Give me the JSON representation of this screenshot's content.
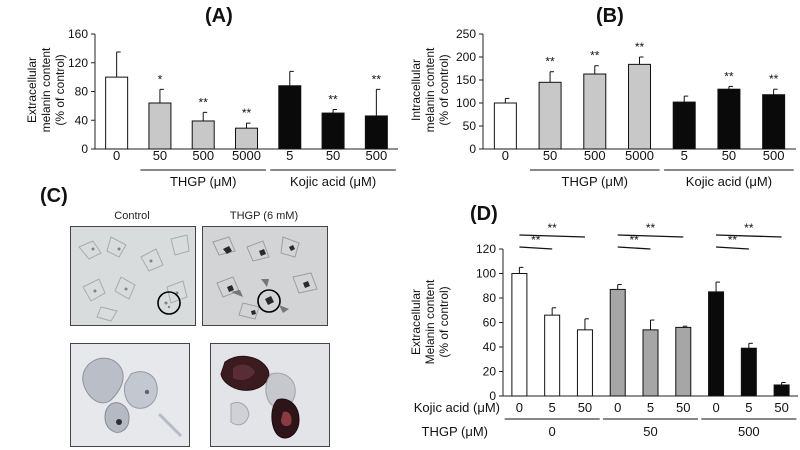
{
  "panels": {
    "A": "(A)",
    "B": "(B)",
    "C": "(C)",
    "D": "(D)"
  },
  "micrograph": {
    "control_label": "Control",
    "treated_label": "THGP (6 mM)"
  },
  "colors": {
    "white": "#ffffff",
    "gray": "#c8c8c8",
    "black": "#0a0a0a",
    "gray_d": "#a6a6a6"
  },
  "chart_data": [
    {
      "id": "A",
      "type": "bar",
      "ylabel": [
        "Extracellular",
        "melanin content",
        "(% of control)"
      ],
      "ylim": [
        0,
        160
      ],
      "yticks": [
        0,
        40,
        80,
        120,
        160
      ],
      "categories": [
        "0",
        "50",
        "500",
        "5000",
        "5",
        "50",
        "500"
      ],
      "values": [
        100,
        64,
        39,
        29,
        88,
        50,
        46
      ],
      "errors": [
        35,
        19,
        12,
        7,
        20,
        5,
        37
      ],
      "fills": [
        "white",
        "gray",
        "gray",
        "gray",
        "black",
        "black",
        "black"
      ],
      "annotations": [
        "",
        "*",
        "**",
        "**",
        "",
        "**",
        "**"
      ],
      "groups": [
        {
          "label": "THGP (μM)",
          "from": 1,
          "to": 3
        },
        {
          "label": "Kojic acid (μM)",
          "from": 4,
          "to": 6
        }
      ]
    },
    {
      "id": "B",
      "type": "bar",
      "ylabel": [
        "Intracellular",
        "melanin content",
        "(% of control)"
      ],
      "ylim": [
        0,
        250
      ],
      "yticks": [
        0,
        50,
        100,
        150,
        200,
        250
      ],
      "categories": [
        "0",
        "50",
        "500",
        "5000",
        "5",
        "50",
        "500"
      ],
      "values": [
        100,
        145,
        163,
        184,
        102,
        130,
        118
      ],
      "errors": [
        10,
        23,
        18,
        16,
        13,
        6,
        12
      ],
      "fills": [
        "white",
        "gray",
        "gray",
        "gray",
        "black",
        "black",
        "black"
      ],
      "annotations": [
        "",
        "**",
        "**",
        "**",
        "",
        "**",
        "**"
      ],
      "groups": [
        {
          "label": "THGP (μM)",
          "from": 1,
          "to": 3
        },
        {
          "label": "Kojic acid (μM)",
          "from": 4,
          "to": 6
        }
      ]
    },
    {
      "id": "D",
      "type": "bar",
      "ylabel": [
        "Extracellular",
        "Melanin content",
        "(% of control)"
      ],
      "ylim": [
        0,
        120
      ],
      "yticks": [
        0,
        20,
        40,
        60,
        80,
        100,
        120
      ],
      "row1_label": "Kojic acid (μM)",
      "row2_label": "THGP (μM)",
      "categories": [
        "0",
        "5",
        "50",
        "0",
        "5",
        "50",
        "0",
        "5",
        "50"
      ],
      "values": [
        100,
        66,
        54,
        87,
        54,
        56,
        85,
        39,
        9
      ],
      "errors": [
        5,
        6,
        9,
        4,
        8,
        1,
        8,
        4,
        2
      ],
      "fills": [
        "white",
        "white",
        "white",
        "gray_d",
        "gray_d",
        "gray_d",
        "black",
        "black",
        "black"
      ],
      "groups": [
        {
          "label": "0",
          "from": 0,
          "to": 2
        },
        {
          "label": "50",
          "from": 3,
          "to": 5
        },
        {
          "label": "500",
          "from": 6,
          "to": 8
        }
      ],
      "brackets": [
        {
          "from": 0,
          "to": 1,
          "label": "**"
        },
        {
          "from": 0,
          "to": 2,
          "label": "**"
        },
        {
          "from": 3,
          "to": 4,
          "label": "**"
        },
        {
          "from": 3,
          "to": 5,
          "label": "**"
        },
        {
          "from": 6,
          "to": 7,
          "label": "**"
        },
        {
          "from": 6,
          "to": 8,
          "label": "**"
        }
      ]
    }
  ]
}
